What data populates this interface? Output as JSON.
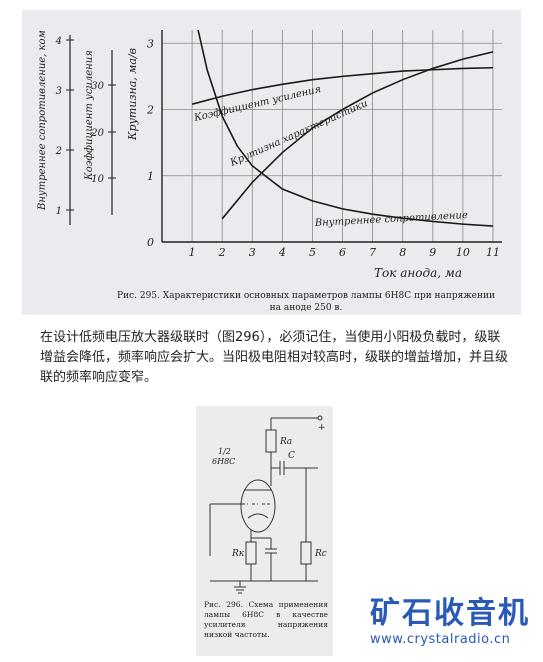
{
  "figure1": {
    "axis_left1_label": "Внутреннее сопротивление, ком",
    "axis_left1_ticks": [
      "4",
      "3",
      "2",
      "1"
    ],
    "axis_left2_label": "Коэффициент усиления",
    "axis_left2_ticks": [
      "30",
      "20",
      "10"
    ],
    "axis_left3_label": "Крутизна, ма/в",
    "axis_left3_ticks": [
      "3",
      "2",
      "1",
      "0"
    ],
    "x_ticks": [
      "1",
      "2",
      "3",
      "4",
      "5",
      "6",
      "7",
      "8",
      "9",
      "10",
      "11"
    ],
    "x_label": "Ток анода, ма",
    "curve_label_gain": "Коэффициент усиления",
    "curve_label_slope": "Крутизна характеристики",
    "curve_label_resistance": "Внутреннее сопротивление",
    "caption_line1": "Рис. 295. Характеристики основных параметров лампы 6Н8С при напряжении",
    "caption_line2": "на аноде 250 в."
  },
  "body_text": "在设计低频电压放大器级联时（图296），必须记住，当使用小阳极负载时，级联增益会降低，频率响应会扩大。当阳极电阻相对较高时，级联的增益增加，并且级联的频率响应变窄。",
  "figure2": {
    "label_ra": "Rа",
    "label_c": "C",
    "label_tube_line1": "1/2",
    "label_tube_line2": "6Н8С",
    "label_rk": "Rк",
    "label_rc": "Rс",
    "label_plus": "+",
    "caption": "Рис. 296. Схема применения лампы 6Н8С в качестве усилителя напряжения низкой частоты."
  },
  "logo": {
    "title": "矿石收音机",
    "url": "www.crystalradio.cn"
  },
  "chart_data": {
    "type": "line",
    "xlabel": "Ток анода, ма",
    "x_ticks": [
      1,
      2,
      3,
      4,
      5,
      6,
      7,
      8,
      9,
      10,
      11
    ],
    "xlim": [
      0,
      11.3
    ],
    "ylabel": "Крутизна, ма/в",
    "ylim": [
      0,
      3.2
    ],
    "grid": true,
    "series": [
      {
        "name": "Коэффициент усиления",
        "x": [
          1.0,
          2,
          3,
          4,
          5,
          6,
          7,
          8,
          9,
          10,
          11
        ],
        "y": [
          2.08,
          2.2,
          2.3,
          2.38,
          2.45,
          2.5,
          2.54,
          2.58,
          2.6,
          2.62,
          2.63
        ]
      },
      {
        "name": "Крутизна характеристики",
        "x": [
          2.0,
          3,
          4,
          5,
          6,
          7,
          8,
          9,
          10,
          11
        ],
        "y": [
          0.35,
          0.9,
          1.35,
          1.72,
          2.0,
          2.25,
          2.45,
          2.62,
          2.76,
          2.87
        ]
      },
      {
        "name": "Внутреннее сопротивление",
        "x": [
          1.2,
          1.5,
          2,
          2.5,
          3,
          4,
          5,
          6,
          7,
          8,
          9,
          10,
          11
        ],
        "y": [
          3.2,
          2.6,
          1.9,
          1.45,
          1.15,
          0.8,
          0.62,
          0.5,
          0.42,
          0.36,
          0.31,
          0.27,
          0.24
        ]
      }
    ]
  }
}
